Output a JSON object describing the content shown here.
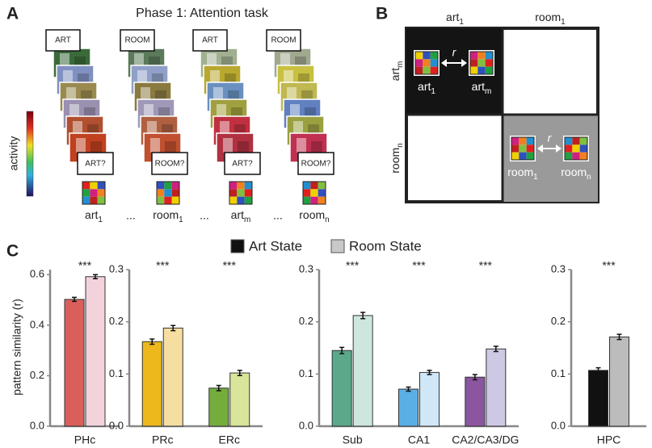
{
  "panel_a": {
    "letter": "A",
    "title": "Phase 1: Attention task",
    "colorbar_label": "activity",
    "cue_labels": [
      "ART",
      "ROOM",
      "ART",
      "ROOM"
    ],
    "probe_labels": [
      "ART?",
      "ROOM?",
      "ART?",
      "ROOM?"
    ],
    "captions": [
      {
        "base": "art",
        "sub": "1"
      },
      {
        "base": "room",
        "sub": "1"
      },
      {
        "base": "art",
        "sub": "m"
      },
      {
        "base": "room",
        "sub": "n"
      }
    ],
    "ellipses": [
      "...",
      "...",
      "..."
    ]
  },
  "panel_b": {
    "letter": "B",
    "columns": [
      {
        "base": "art",
        "sub": "1"
      },
      {
        "base": "room",
        "sub": "1"
      }
    ],
    "rows": [
      {
        "base": "art",
        "sub": "m"
      },
      {
        "base": "room",
        "sub": "n"
      }
    ],
    "cells": [
      {
        "left": {
          "base": "art",
          "sub": "1"
        },
        "right": {
          "base": "art",
          "sub": "m"
        },
        "relation": "r"
      },
      {
        "left": {
          "base": "room",
          "sub": "1"
        },
        "right": {
          "base": "room",
          "sub": "n"
        },
        "relation": "r"
      }
    ]
  },
  "panel_c": {
    "letter": "C",
    "legend": [
      {
        "name": "Art State",
        "color": "#111111"
      },
      {
        "name": "Room State",
        "color": "#c8c8c8"
      }
    ]
  },
  "chart_data": [
    {
      "type": "bar",
      "ylabel": "pattern similarity (r)",
      "categories": [
        "PHc"
      ],
      "annotations": [
        "***"
      ],
      "series": [
        {
          "colors": [
            "#d9605a"
          ],
          "values": [
            0.502
          ],
          "errors": [
            0.008
          ]
        },
        {
          "colors": [
            "#f2d3dc"
          ],
          "values": [
            0.592
          ],
          "errors": [
            0.008
          ]
        }
      ],
      "ylim": [
        0,
        0.62
      ],
      "yticks": [
        {
          "value": 0,
          "label": "0.0"
        },
        0.2,
        0.4,
        0.6
      ]
    },
    {
      "type": "bar",
      "categories": [
        "PRc",
        "ERc"
      ],
      "annotations": [
        "***",
        "***"
      ],
      "series": [
        {
          "colors": [
            "#ecb81c",
            "#73ad3c"
          ],
          "values": [
            0.162,
            0.073
          ],
          "errors": [
            0.005,
            0.005
          ]
        },
        {
          "colors": [
            "#f5dea0",
            "#d8e59a"
          ],
          "values": [
            0.188,
            0.102
          ],
          "errors": [
            0.005,
            0.005
          ]
        }
      ],
      "ylim": [
        0,
        0.3
      ],
      "yticks": [
        {
          "value": 0,
          "label": "0.0"
        },
        0.1,
        0.2,
        0.3
      ]
    },
    {
      "type": "bar",
      "categories": [
        "Sub",
        "CA1",
        "CA2/CA3/DG"
      ],
      "annotations": [
        "***",
        "***",
        "***"
      ],
      "series": [
        {
          "colors": [
            "#5ca88a",
            "#5ab0e4",
            "#8b55a0"
          ],
          "values": [
            0.145,
            0.071,
            0.094
          ],
          "errors": [
            0.006,
            0.004,
            0.005
          ]
        },
        {
          "colors": [
            "#cde7df",
            "#cfe7f7",
            "#cdc8e4"
          ],
          "values": [
            0.212,
            0.103,
            0.148
          ],
          "errors": [
            0.006,
            0.004,
            0.005
          ]
        }
      ],
      "ylim": [
        0,
        0.3
      ],
      "yticks": [
        {
          "value": 0,
          "label": "0.0"
        },
        0.1,
        0.2,
        0.3
      ]
    },
    {
      "type": "bar",
      "categories": [
        "HPC"
      ],
      "annotations": [
        "***"
      ],
      "series": [
        {
          "colors": [
            "#111111"
          ],
          "values": [
            0.107
          ],
          "errors": [
            0.005
          ]
        },
        {
          "colors": [
            "#bcbcbc"
          ],
          "values": [
            0.171
          ],
          "errors": [
            0.005
          ]
        }
      ],
      "ylim": [
        0,
        0.3
      ],
      "yticks": [
        {
          "value": 0,
          "label": "0.0"
        },
        0.1,
        0.2,
        0.3
      ]
    }
  ]
}
